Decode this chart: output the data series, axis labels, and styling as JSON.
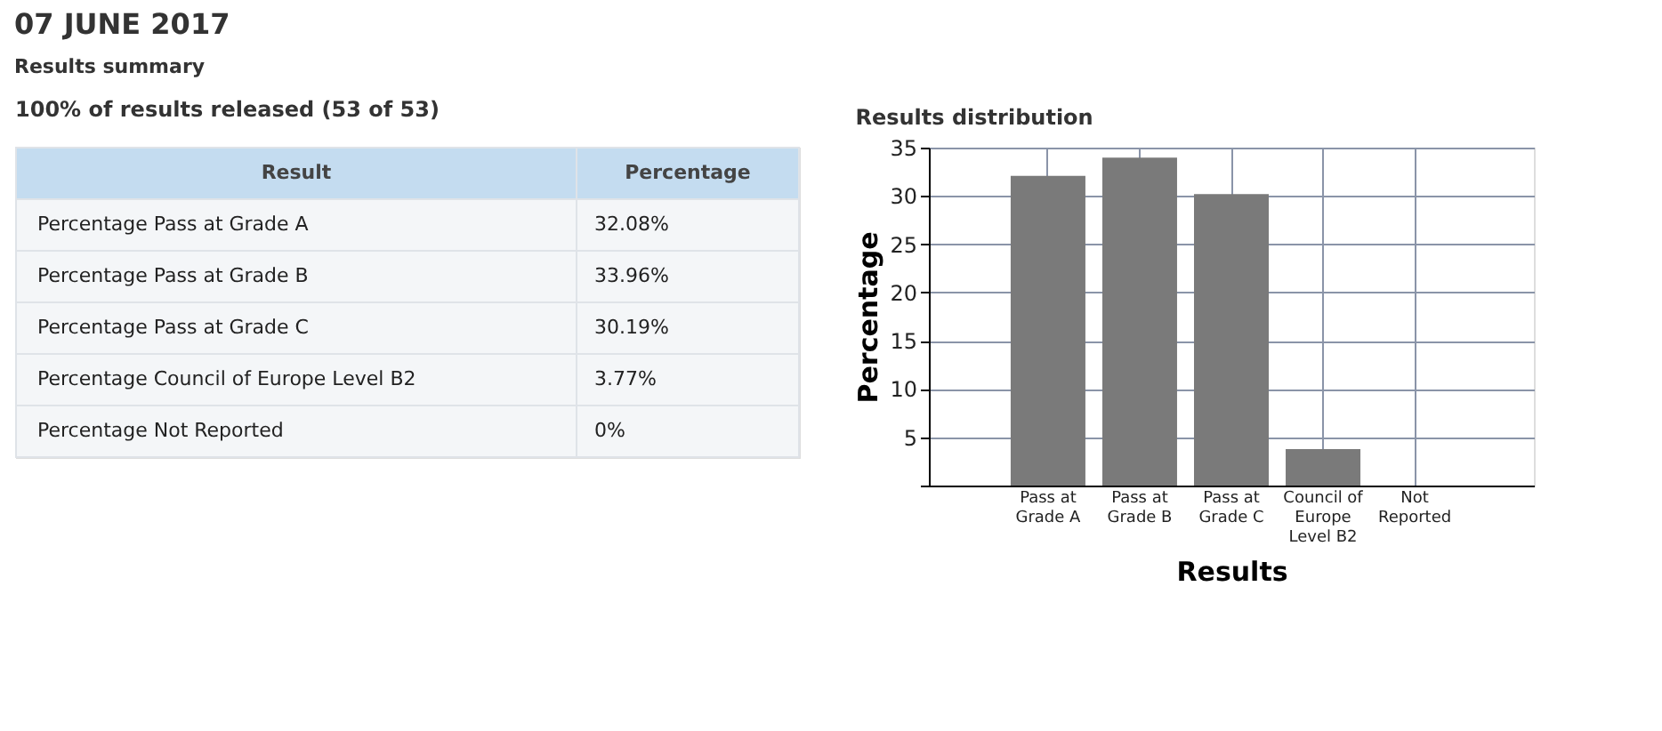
{
  "chart_data": {
    "type": "bar",
    "title": "07 JUNE 2017",
    "subtitle": "Results summary",
    "annotations": [
      "100% of results released (53 of 53)",
      "Results distribution",
      "Result",
      "Percentage",
      "Percentage Pass at Grade A",
      "Percentage Pass at Grade B",
      "Percentage Pass at Grade C",
      "Percentage Council of Europe Level B2",
      "Percentage Not Reported",
      "32.08%",
      "33.96%",
      "30.19%",
      "3.77%",
      "0%"
    ],
    "categories": [
      "Pass at\nGrade A",
      "Pass at\nGrade B",
      "Pass at\nGrade C",
      "Council of\nEurope\nLevel B2",
      "Not\nReported"
    ],
    "values": [
      32.08,
      33.96,
      30.19,
      3.77,
      0
    ],
    "color": "#7a7a7a",
    "xlabel": "Results",
    "ylabel": "Percentage",
    "ylim": [
      0,
      35
    ],
    "yticks": [
      {
        "value": 0,
        "label": null
      },
      5,
      10,
      15,
      20,
      25,
      30,
      35
    ],
    "grid": true
  }
}
